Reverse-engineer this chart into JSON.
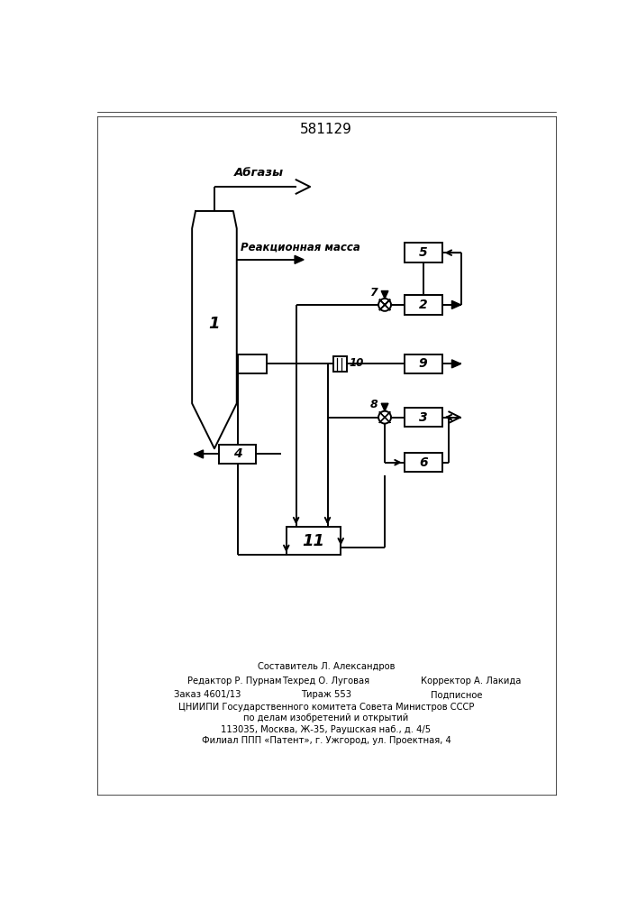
{
  "title": "581129",
  "bg_color": "#ffffff",
  "lw": 1.4,
  "label_abgazy": "Абгазы",
  "label_reaction": "Реакционная масса",
  "footer_line1": "Составитель Л. Александров",
  "footer_line2a": "Редактор Р. Пурнам",
  "footer_line2b": "Техред О. Луговая",
  "footer_line2c": "Корректор А. Лакида",
  "footer_line3a": "Заказ 4601/13",
  "footer_line3b": "Тираж 553",
  "footer_line3c": "Подписное",
  "footer_line4": "ЦНИИПИ Государственного комитета Совета Министров СССР",
  "footer_line5": "по делам изобретений и открытий",
  "footer_line6": "113035, Москва, Ж-35, Раушская наб., д. 4/5",
  "footer_line7": "Филиал ППП «Патент», г. Ужгород, ул. Проектная, 4"
}
